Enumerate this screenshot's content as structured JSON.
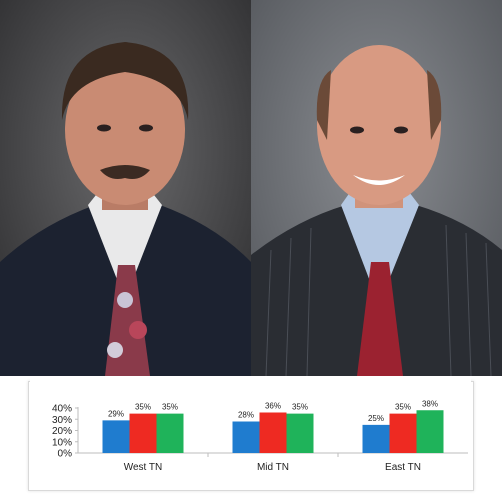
{
  "chart_data": {
    "type": "bar",
    "categories": [
      "West TN",
      "Mid TN",
      "East TN"
    ],
    "series": [
      {
        "color": "#1f7ccf",
        "values": [
          29,
          28,
          25
        ]
      },
      {
        "color": "#ee2a22",
        "values": [
          35,
          36,
          35
        ]
      },
      {
        "color": "#1fb35a",
        "values": [
          35,
          35,
          38
        ]
      }
    ],
    "data_labels": [
      [
        "29%",
        "35%",
        "35%"
      ],
      [
        "28%",
        "36%",
        "35%"
      ],
      [
        "25%",
        "35%",
        "38%"
      ]
    ],
    "y_ticks": [
      {
        "value": 40,
        "label": "40%"
      },
      {
        "value": 30,
        "label": "30%"
      },
      {
        "value": 20,
        "label": "20%"
      },
      {
        "value": 10,
        "label": "10%"
      },
      {
        "value": 0,
        "label": "0%"
      }
    ],
    "ylim": [
      0,
      40
    ],
    "grid": false,
    "legend": "none"
  }
}
